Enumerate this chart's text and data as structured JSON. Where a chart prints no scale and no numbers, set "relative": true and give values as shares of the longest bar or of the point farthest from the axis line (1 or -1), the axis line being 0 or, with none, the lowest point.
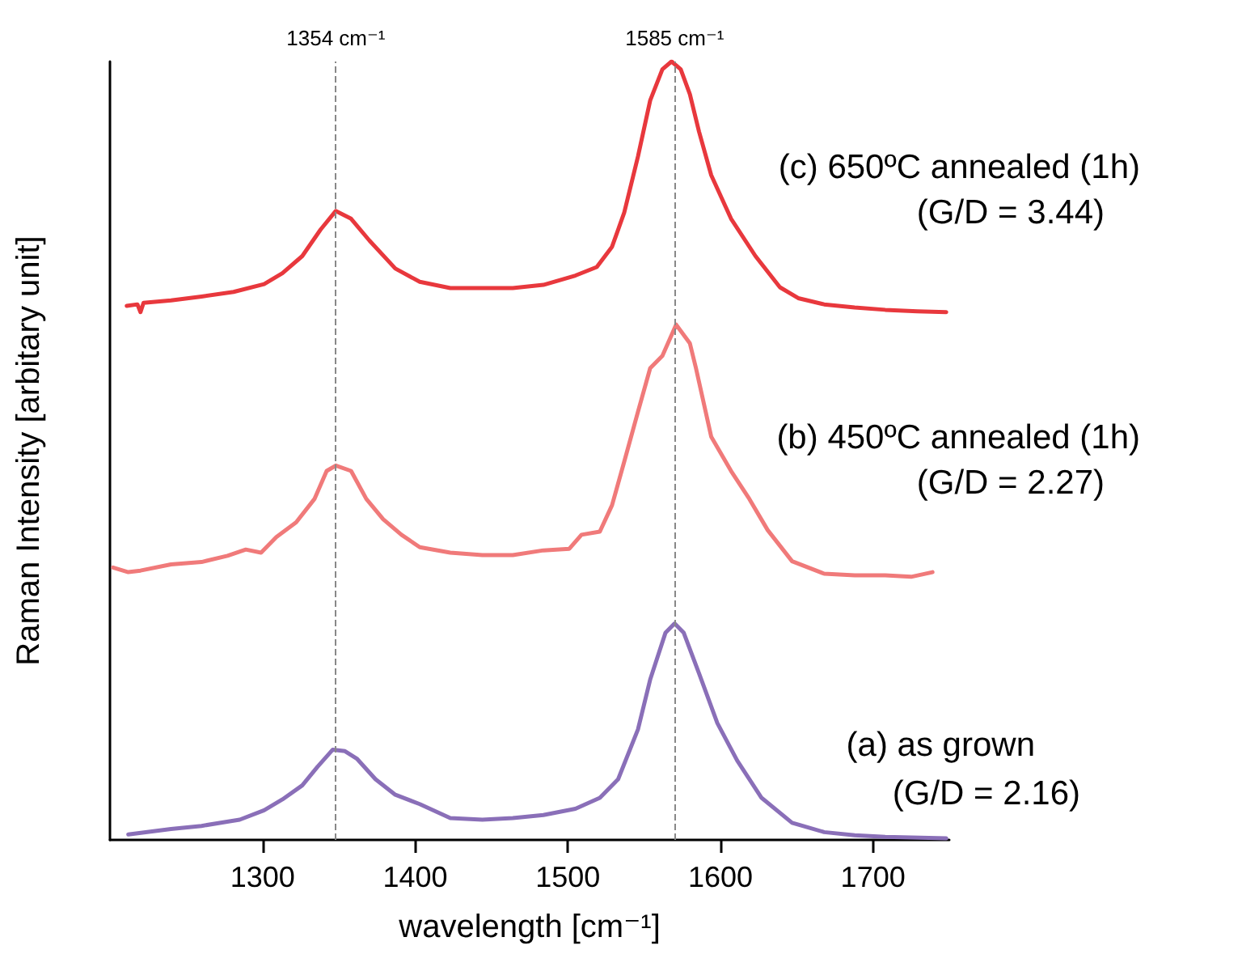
{
  "chart_data": {
    "type": "line",
    "relative": true,
    "xlabel": "wavelength [cm⁻¹]",
    "ylabel": "Raman Intensity [arbitary unit]",
    "xlim": [
      1200,
      1750
    ],
    "xticks": [
      1300,
      1400,
      1500,
      1600,
      1700
    ],
    "grid": false,
    "legend": false,
    "marker": "none",
    "line_style": "solid",
    "annotations": [
      "(G/D = 3.44)",
      "(G/D = 2.27)",
      "(G/D = 2.16)"
    ],
    "ref_lines": [
      {
        "axis": "x",
        "value": 1348,
        "label": "1354 cm⁻¹",
        "color": "#888888",
        "line_style": "dashed"
      },
      {
        "axis": "x",
        "value": 1570,
        "label": "1585 cm⁻¹",
        "color": "#888888",
        "line_style": "dashed"
      }
    ],
    "series": [
      {
        "name": "(c) 650ºC annealed (1h)",
        "color": "#e8383d",
        "x": [
          1211,
          1218,
          1220,
          1222,
          1240,
          1260,
          1281,
          1301,
          1313,
          1326,
          1338,
          1348,
          1358,
          1370,
          1387,
          1403,
          1423,
          1444,
          1464,
          1484,
          1505,
          1519,
          1529,
          1537,
          1546,
          1554,
          1562,
          1568,
          1574,
          1580,
          1586,
          1594,
          1607,
          1623,
          1639,
          1651,
          1668,
          1688,
          1708,
          1729,
          1748
        ],
        "values": [
          0.686,
          0.688,
          0.678,
          0.69,
          0.693,
          0.698,
          0.704,
          0.714,
          0.728,
          0.75,
          0.784,
          0.808,
          0.798,
          0.77,
          0.734,
          0.717,
          0.709,
          0.709,
          0.709,
          0.713,
          0.725,
          0.736,
          0.762,
          0.806,
          0.878,
          0.95,
          0.99,
          1.0,
          0.99,
          0.958,
          0.91,
          0.854,
          0.798,
          0.75,
          0.71,
          0.696,
          0.688,
          0.684,
          0.681,
          0.679,
          0.678
        ]
      },
      {
        "name": "(b) 450ºC annealed (1h)",
        "color": "#f07a7a",
        "x": [
          1202,
          1212,
          1220,
          1240,
          1260,
          1277,
          1289,
          1299,
          1309,
          1322,
          1334,
          1342,
          1348,
          1358,
          1368,
          1379,
          1391,
          1403,
          1423,
          1444,
          1464,
          1484,
          1501,
          1509,
          1521,
          1529,
          1537,
          1546,
          1554,
          1562,
          1571,
          1580,
          1584,
          1594,
          1607,
          1619,
          1631,
          1647,
          1668,
          1688,
          1708,
          1725,
          1739
        ],
        "values": [
          0.35,
          0.344,
          0.346,
          0.354,
          0.357,
          0.365,
          0.373,
          0.369,
          0.389,
          0.408,
          0.438,
          0.474,
          0.481,
          0.474,
          0.438,
          0.412,
          0.392,
          0.376,
          0.369,
          0.366,
          0.366,
          0.372,
          0.374,
          0.392,
          0.396,
          0.43,
          0.486,
          0.55,
          0.606,
          0.622,
          0.662,
          0.638,
          0.606,
          0.518,
          0.474,
          0.438,
          0.398,
          0.358,
          0.342,
          0.34,
          0.34,
          0.338,
          0.344
        ]
      },
      {
        "name": "(a) as grown",
        "color": "#8a6fb8",
        "x": [
          1212,
          1240,
          1260,
          1285,
          1301,
          1313,
          1326,
          1336,
          1346,
          1354,
          1362,
          1374,
          1387,
          1403,
          1423,
          1444,
          1464,
          1484,
          1505,
          1521,
          1533,
          1546,
          1554,
          1564,
          1570,
          1576,
          1586,
          1598,
          1611,
          1627,
          1647,
          1668,
          1688,
          1708,
          1748
        ],
        "values": [
          0.007,
          0.014,
          0.018,
          0.026,
          0.038,
          0.052,
          0.07,
          0.094,
          0.116,
          0.114,
          0.104,
          0.078,
          0.058,
          0.046,
          0.028,
          0.026,
          0.028,
          0.032,
          0.04,
          0.054,
          0.078,
          0.142,
          0.206,
          0.266,
          0.278,
          0.266,
          0.214,
          0.15,
          0.102,
          0.054,
          0.022,
          0.01,
          0.006,
          0.004,
          0.002
        ]
      }
    ]
  }
}
